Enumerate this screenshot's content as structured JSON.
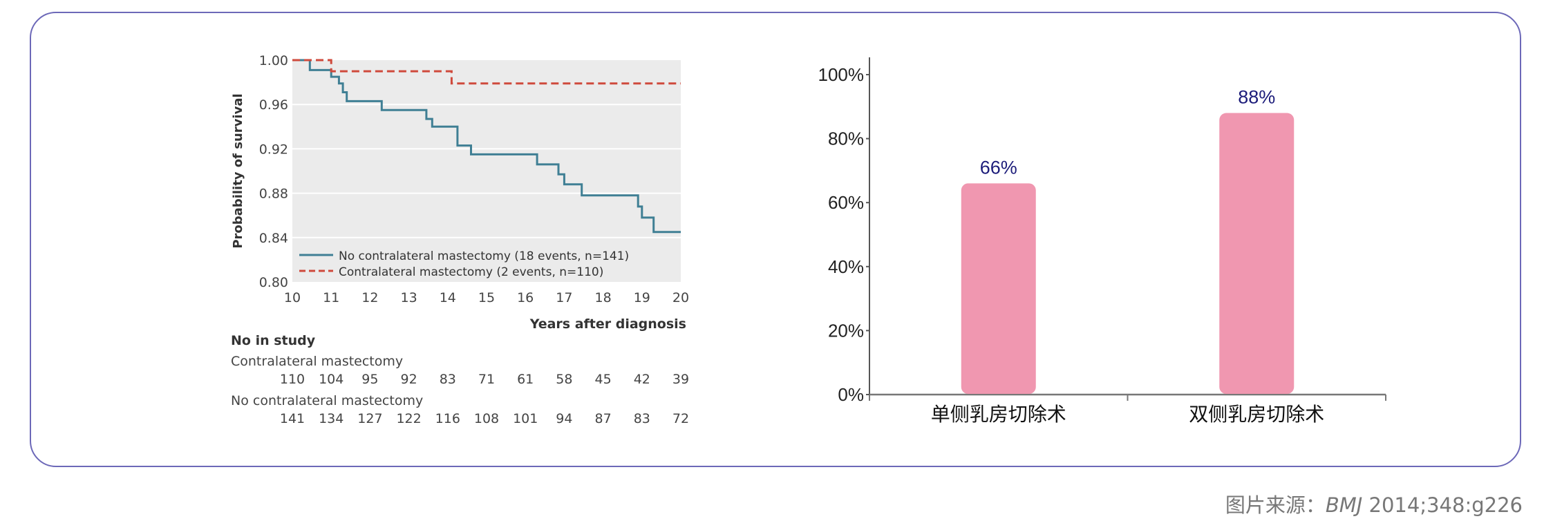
{
  "source": {
    "prefix": "图片来源：",
    "journal": "BMJ",
    "citation": " 2014;348:g226"
  },
  "chart_data": [
    {
      "type": "line",
      "title": "",
      "xlabel": "Years after diagnosis",
      "ylabel": "Probability of survival",
      "xlim": [
        10,
        20
      ],
      "ylim": [
        0.8,
        1.0
      ],
      "x_ticks": [
        10,
        11,
        12,
        13,
        14,
        15,
        16,
        17,
        18,
        19,
        20
      ],
      "y_ticks": [
        0.8,
        0.84,
        0.88,
        0.92,
        0.96,
        1.0
      ],
      "y_tick_labels": [
        "0.80",
        "0.84",
        "0.88",
        "0.92",
        "0.96",
        "1.00"
      ],
      "grid": "horizontal",
      "background": "#ebebeb",
      "legend_position": "bottom-left",
      "series": [
        {
          "name": "No contralateral mastectomy (18 events, n=141)",
          "style": "solid",
          "color": "#3f7f94",
          "step_x": [
            10,
            10.45,
            10.45,
            11.0,
            11.0,
            11.2,
            11.2,
            11.3,
            11.3,
            11.4,
            11.4,
            12.3,
            12.3,
            13.45,
            13.45,
            13.6,
            13.6,
            14.25,
            14.25,
            14.6,
            14.6,
            16.3,
            16.3,
            16.85,
            16.85,
            17.0,
            17.0,
            17.45,
            17.45,
            18.9,
            18.9,
            19.0,
            19.0,
            19.3,
            19.3,
            20
          ],
          "step_y": [
            1.0,
            1.0,
            0.991,
            0.991,
            0.985,
            0.985,
            0.979,
            0.979,
            0.971,
            0.971,
            0.963,
            0.963,
            0.955,
            0.955,
            0.947,
            0.947,
            0.94,
            0.94,
            0.923,
            0.923,
            0.915,
            0.915,
            0.906,
            0.906,
            0.897,
            0.897,
            0.888,
            0.888,
            0.878,
            0.878,
            0.868,
            0.868,
            0.858,
            0.858,
            0.845,
            0.845
          ]
        },
        {
          "name": "Contralateral mastectomy (2 events, n=110)",
          "style": "dashed",
          "color": "#cf4a3c",
          "step_x": [
            10,
            11.0,
            11.0,
            14.1,
            14.1,
            20
          ],
          "step_y": [
            1.0,
            1.0,
            0.99,
            0.99,
            0.979,
            0.979
          ]
        }
      ],
      "risk_table": {
        "heading": "No in study",
        "rows": [
          {
            "group": "Contralateral mastectomy",
            "values": [
              "110",
              "104",
              "95",
              "92",
              "83",
              "71",
              "61",
              "58",
              "45",
              "42",
              "39"
            ]
          },
          {
            "group": "No contralateral mastectomy",
            "values": [
              "141",
              "134",
              "127",
              "122",
              "116",
              "108",
              "101",
              "94",
              "87",
              "83",
              "72"
            ]
          }
        ]
      }
    },
    {
      "type": "bar",
      "title": "",
      "categories": [
        "单侧乳房切除术",
        "双侧乳房切除术"
      ],
      "values": [
        66,
        88
      ],
      "value_labels": [
        "66%",
        "88%"
      ],
      "ylim": [
        0,
        100
      ],
      "y_ticks": [
        0,
        20,
        40,
        60,
        80,
        100
      ],
      "y_tick_labels": [
        "0%",
        "20%",
        "40%",
        "60%",
        "80%",
        "100%"
      ],
      "bar_color": "#f097b0",
      "label_color": "#1c1c7a",
      "grid": false
    }
  ]
}
